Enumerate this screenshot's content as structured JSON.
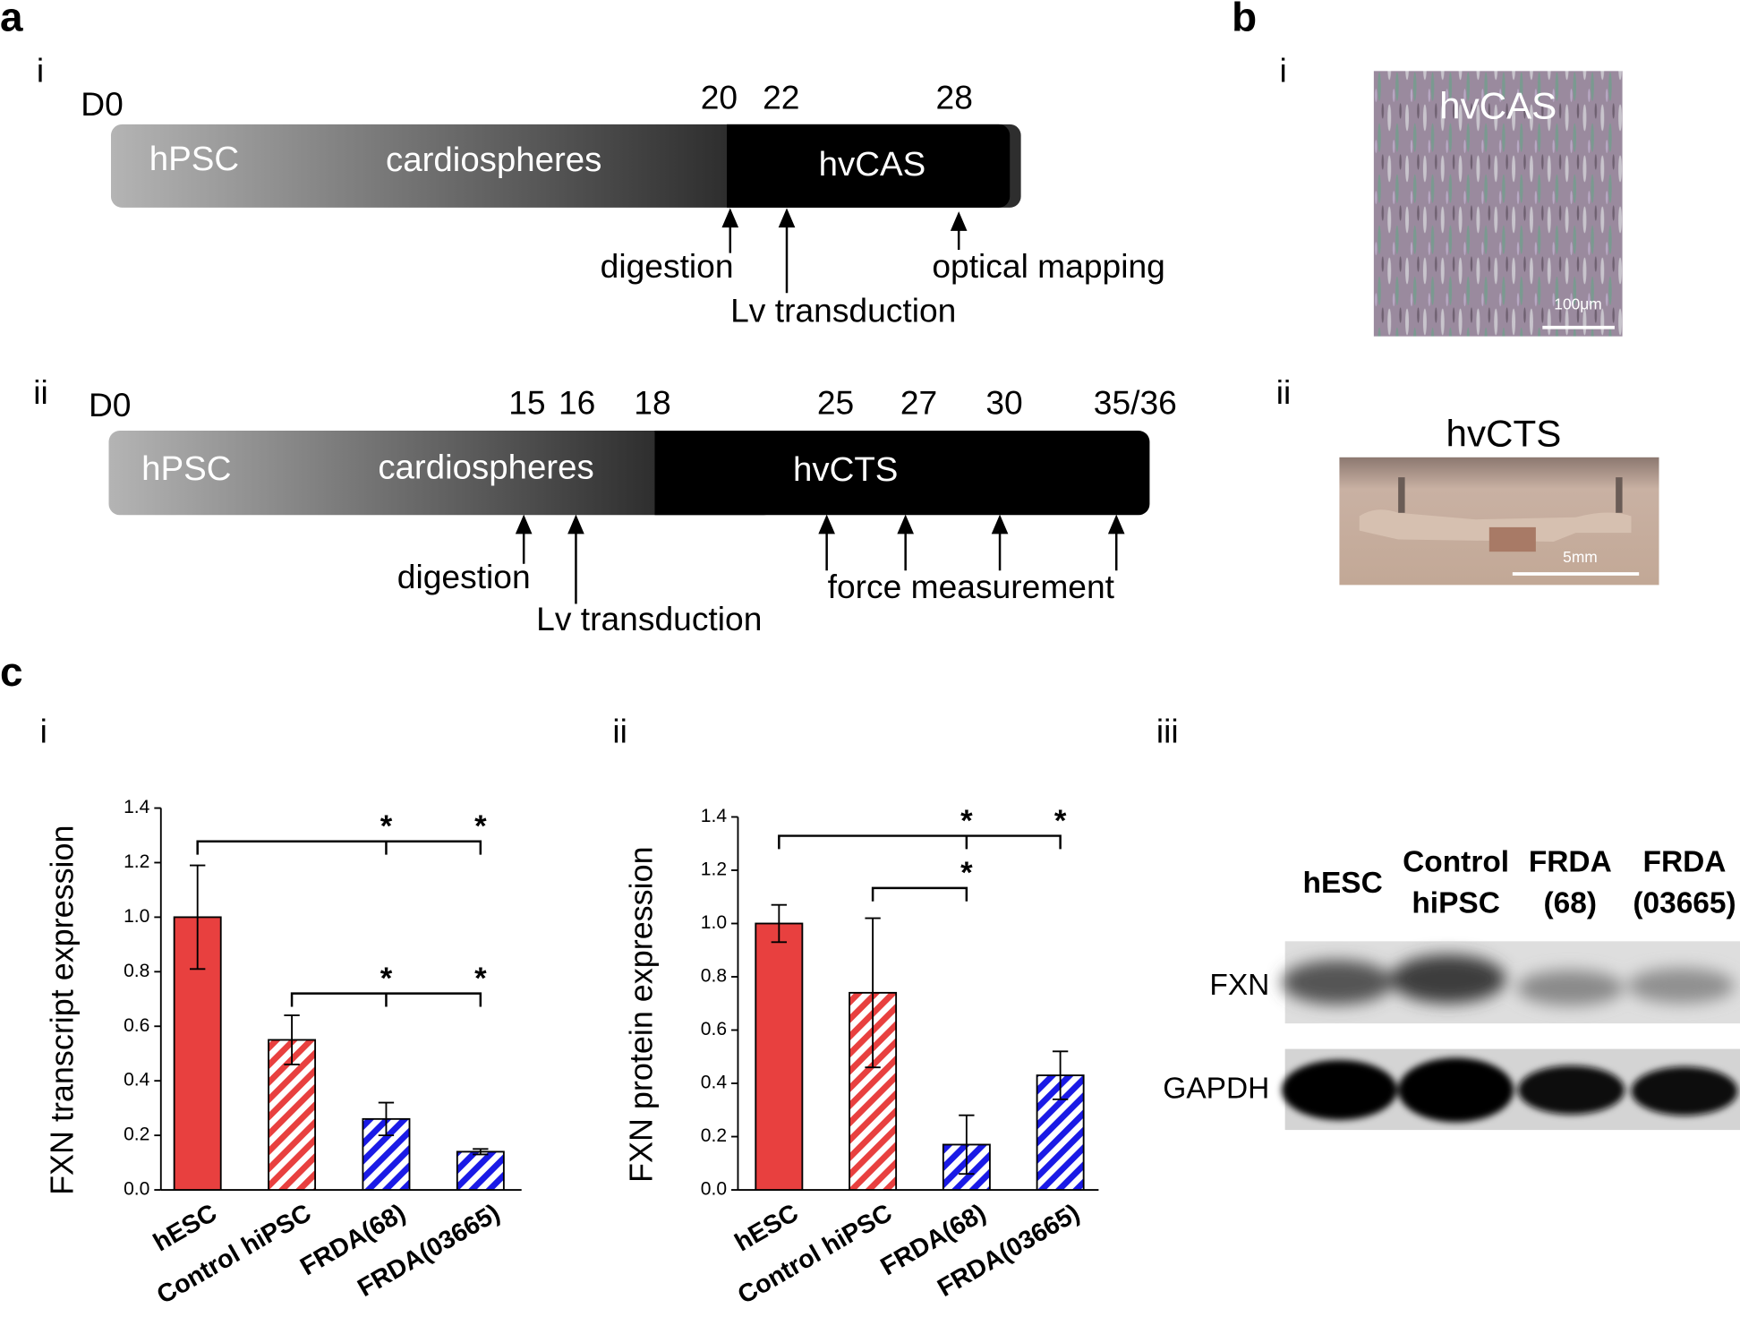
{
  "panel_labels": {
    "a": "a",
    "a_i": "i",
    "a_ii": "ii",
    "b": "b",
    "b_i": "i",
    "b_ii": "ii",
    "c": "c",
    "c_i": "i",
    "c_ii": "ii",
    "c_iii": "iii"
  },
  "timeline_i": {
    "start": "D0",
    "days": [
      "20",
      "22",
      "28"
    ],
    "stages": [
      "hPSC",
      "cardiospheres",
      "hvCAS"
    ],
    "events": [
      "digestion",
      "Lv transduction",
      "optical mapping"
    ]
  },
  "timeline_ii": {
    "start": "D0",
    "days": [
      "15",
      "16",
      "18",
      "25",
      "27",
      "30",
      "35/36"
    ],
    "stages": [
      "hPSC",
      "cardiospheres",
      "hvCTS"
    ],
    "events": [
      "digestion",
      "Lv transduction",
      "force measurement"
    ]
  },
  "image_i": {
    "label": "hvCAS",
    "scale": "100μm"
  },
  "image_ii": {
    "label": "hvCTS",
    "scale": "5mm"
  },
  "chart_data": [
    {
      "type": "bar",
      "ylabel": "FXN transcript expression",
      "categories": [
        "hESC",
        "Control hiPSC",
        "FRDA(68)",
        "FRDA(03665)"
      ],
      "values": [
        1.0,
        0.55,
        0.26,
        0.14
      ],
      "errors": [
        0.19,
        0.09,
        0.06,
        0.01
      ],
      "colors": [
        "#e8403f",
        "#e8403f",
        "#1a1ae6",
        "#1a1ae6"
      ],
      "hatch": [
        false,
        true,
        true,
        true
      ],
      "ylim": [
        0,
        1.4
      ],
      "yticks": [
        {
          "value": 0,
          "label": "0.0"
        },
        0.2,
        0.4,
        0.6,
        0.8,
        {
          "value": 1,
          "label": "1.0"
        },
        1.2,
        1.4
      ],
      "annotations": [
        "*",
        "*",
        "*",
        "*"
      ]
    },
    {
      "type": "bar",
      "ylabel": "FXN protein expression",
      "categories": [
        "hESC",
        "Control hiPSC",
        "FRDA(68)",
        "FRDA(03665)"
      ],
      "values": [
        1.0,
        0.74,
        0.17,
        0.43
      ],
      "errors": [
        0.07,
        0.28,
        0.11,
        0.09
      ],
      "colors": [
        "#e8403f",
        "#e8403f",
        "#1a1ae6",
        "#1a1ae6"
      ],
      "hatch": [
        false,
        true,
        true,
        true
      ],
      "ylim": [
        0,
        1.4
      ],
      "yticks": [
        {
          "value": 0,
          "label": "0.0"
        },
        0.2,
        0.4,
        0.6,
        0.8,
        {
          "value": 1,
          "label": "1.0"
        },
        1.2,
        1.4
      ],
      "annotations": [
        "*",
        "*",
        "*"
      ]
    }
  ],
  "western_blot": {
    "columns": [
      [
        "hESC"
      ],
      [
        "Control",
        "hiPSC"
      ],
      [
        "FRDA",
        "(68)"
      ],
      [
        "FRDA",
        "(03665)"
      ]
    ],
    "rows": [
      "FXN",
      "GAPDH"
    ]
  }
}
